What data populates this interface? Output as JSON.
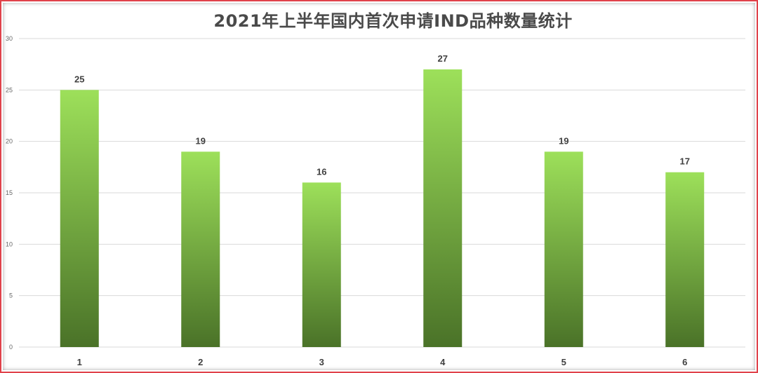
{
  "chart_data": {
    "type": "bar",
    "title": "2021年上半年国内首次申请IND品种数量统计",
    "xlabel": "",
    "ylabel": "",
    "categories": [
      "1",
      "2",
      "3",
      "4",
      "5",
      "6"
    ],
    "values": [
      25,
      19,
      16,
      27,
      19,
      17
    ],
    "ylim": [
      0,
      30
    ],
    "yticks": [
      0,
      5,
      10,
      15,
      20,
      25,
      30
    ],
    "grid": true,
    "legend": "none",
    "data_labels": true
  },
  "colors": {
    "bar_top": "#9de05a",
    "bar_bottom": "#4a7228",
    "grid": "#d9d9d9",
    "frame_border": "#e0424a",
    "title": "#4a4a4a"
  }
}
